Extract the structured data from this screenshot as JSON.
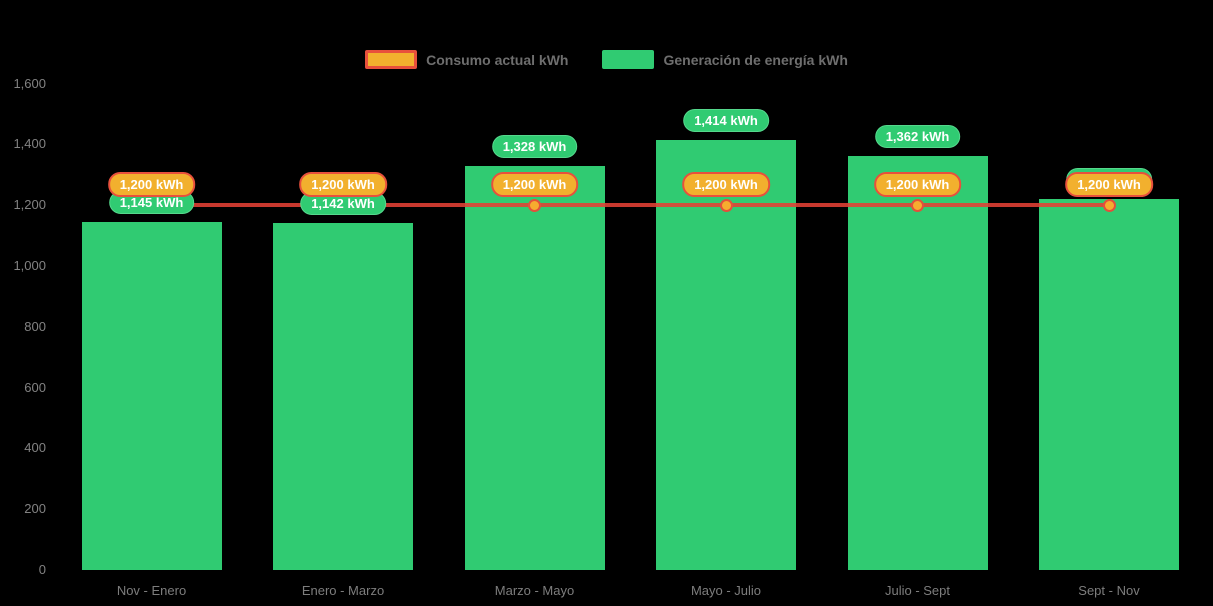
{
  "legend": {
    "consumption_label": "Consumo actual kWh",
    "generation_label": "Generación de energía kWh"
  },
  "colors": {
    "background": "#000000",
    "bar_green": "#30cb72",
    "line_red": "#e2473c",
    "marker_fill": "#f6ac2f",
    "marker_border": "#e2503c",
    "pill_orange_fill": "#f2b02e",
    "pill_orange_border": "#e8503c",
    "pill_green_fill": "#30cb72",
    "axis_text": "#7d7d7d",
    "legend_text": "#6e6e6e"
  },
  "chart_data": {
    "type": "bar",
    "subtype": "bar-line-combo",
    "title": "",
    "categories": [
      "Nov - Enero",
      "Enero - Marzo",
      "Marzo - Mayo",
      "Mayo - Julio",
      "Julio - Sept",
      "Sept - Nov"
    ],
    "series": [
      {
        "name": "Generación de energía kWh",
        "type": "bar",
        "color": "#30cb72",
        "values": [
          1145,
          1142,
          1328,
          1414,
          1362,
          1219
        ],
        "data_labels": [
          "1,145 kWh",
          "1,142 kWh",
          "1,328 kWh",
          "1,414 kWh",
          "1,362 kWh",
          "1,219 kWh"
        ]
      },
      {
        "name": "Consumo actual kWh",
        "type": "line",
        "color": "#e2473c",
        "values": [
          1200,
          1200,
          1200,
          1200,
          1200,
          1200
        ],
        "data_labels": [
          "1,200 kWh",
          "1,200 kWh",
          "1,200 kWh",
          "1,200 kWh",
          "1,200 kWh",
          "1,200 kWh"
        ]
      }
    ],
    "xlabel": "",
    "ylabel": "",
    "ylim": [
      0,
      1600
    ],
    "ytick_labels": [
      "0",
      "200",
      "400",
      "600",
      "800",
      "1,000",
      "1,200",
      "1,400",
      "1,600"
    ],
    "grid": false,
    "legend_position": "top-center"
  }
}
